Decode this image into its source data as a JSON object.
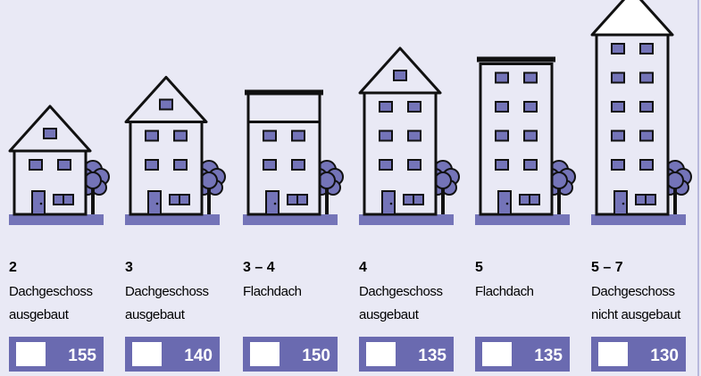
{
  "items": [
    {
      "floors": "2",
      "roof": [
        "Dachgeschoss",
        "ausgebaut"
      ],
      "value": 155
    },
    {
      "floors": "3",
      "roof": [
        "Dachgeschoss",
        "ausgebaut"
      ],
      "value": 140
    },
    {
      "floors": "3 – 4",
      "roof": [
        "Flachdach"
      ],
      "value": 150
    },
    {
      "floors": "4",
      "roof": [
        "Dachgeschoss",
        "ausgebaut"
      ],
      "value": 135
    },
    {
      "floors": "5",
      "roof": [
        "Flachdach"
      ],
      "value": 135
    },
    {
      "floors": "5 – 7",
      "roof": [
        "Dachgeschoss",
        "nicht ausgebaut"
      ],
      "value": 130
    }
  ]
}
